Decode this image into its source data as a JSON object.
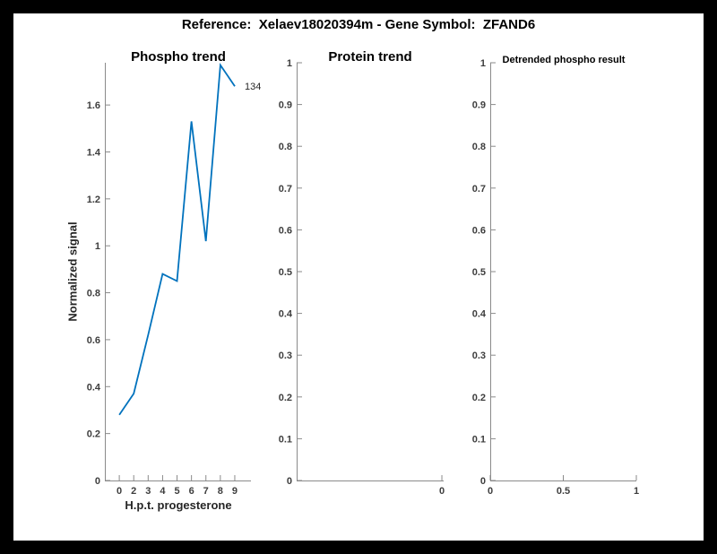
{
  "window": {
    "background": "#000000",
    "canvas": "#ffffff"
  },
  "header": {
    "title": "Reference:  Xelaev18020394m - Gene Symbol:  ZFAND6"
  },
  "colors": {
    "line_blue": "#0072BD",
    "axis": "#8a8a8a",
    "tick_label": "#3d3d3d",
    "annotation": "#262626"
  },
  "chart_data": [
    {
      "type": "line",
      "title": "Phospho trend",
      "xlabel": "H.p.t. progesterone",
      "ylabel": "Normalized signal",
      "categories": [
        "0",
        "2",
        "3",
        "4",
        "5",
        "6",
        "7",
        "8",
        "9"
      ],
      "values": [
        0.28,
        0.37,
        0.62,
        0.88,
        0.85,
        1.53,
        1.02,
        1.77,
        1.68
      ],
      "annotation": "134",
      "line_color": "#0072BD",
      "ylim": [
        0,
        1.78
      ],
      "grid": false,
      "legend": null,
      "yticks": [
        {
          "v": 0,
          "label": "0"
        },
        {
          "v": 0.2,
          "label": "0.2"
        },
        {
          "v": 0.4,
          "label": "0.4"
        },
        {
          "v": 0.6,
          "label": "0.6"
        },
        {
          "v": 0.8,
          "label": "0.8"
        },
        {
          "v": 1,
          "label": "1"
        },
        {
          "v": 1.2,
          "label": "1.2"
        },
        {
          "v": 1.4,
          "label": "1.4"
        },
        {
          "v": 1.6,
          "label": "1.6"
        }
      ],
      "xticks": [
        {
          "f": 0.0988,
          "label": "0"
        },
        {
          "f": 0.1976,
          "label": "2"
        },
        {
          "f": 0.2964,
          "label": "3"
        },
        {
          "f": 0.3953,
          "label": "4"
        },
        {
          "f": 0.4941,
          "label": "5"
        },
        {
          "f": 0.5929,
          "label": "6"
        },
        {
          "f": 0.6917,
          "label": "7"
        },
        {
          "f": 0.7905,
          "label": "8"
        },
        {
          "f": 0.8893,
          "label": "9"
        }
      ]
    },
    {
      "type": "line",
      "title": "Protein trend",
      "xlabel": "",
      "ylabel": "",
      "categories": [],
      "values": [],
      "annotation": null,
      "line_color": "#0072BD",
      "ylim": [
        0,
        1
      ],
      "grid": false,
      "legend": null,
      "yticks": [
        {
          "v": 0,
          "label": "0"
        },
        {
          "v": 0.1,
          "label": "0.1"
        },
        {
          "v": 0.2,
          "label": "0.2"
        },
        {
          "v": 0.3,
          "label": "0.3"
        },
        {
          "v": 0.4,
          "label": "0.4"
        },
        {
          "v": 0.5,
          "label": "0.5"
        },
        {
          "v": 0.6,
          "label": "0.6"
        },
        {
          "v": 0.7,
          "label": "0.7"
        },
        {
          "v": 0.8,
          "label": "0.8"
        },
        {
          "v": 0.9,
          "label": "0.9"
        },
        {
          "v": 1,
          "label": "1"
        }
      ],
      "xticks": [
        {
          "f": 0.988,
          "label": "0"
        }
      ]
    },
    {
      "type": "line",
      "title": "Detrended phospho result",
      "xlabel": "",
      "ylabel": "",
      "categories": [],
      "values": [],
      "annotation": null,
      "line_color": "#0072BD",
      "ylim": [
        0,
        1
      ],
      "grid": false,
      "legend": null,
      "yticks": [
        {
          "v": 0,
          "label": "0"
        },
        {
          "v": 0.1,
          "label": "0.1"
        },
        {
          "v": 0.2,
          "label": "0.2"
        },
        {
          "v": 0.3,
          "label": "0.3"
        },
        {
          "v": 0.4,
          "label": "0.4"
        },
        {
          "v": 0.5,
          "label": "0.5"
        },
        {
          "v": 0.6,
          "label": "0.6"
        },
        {
          "v": 0.7,
          "label": "0.7"
        },
        {
          "v": 0.8,
          "label": "0.8"
        },
        {
          "v": 0.9,
          "label": "0.9"
        },
        {
          "v": 1,
          "label": "1"
        }
      ],
      "xticks": [
        {
          "f": 0,
          "label": "0"
        },
        {
          "f": 0.5,
          "label": "0.5"
        },
        {
          "f": 1,
          "label": "1"
        }
      ]
    }
  ]
}
